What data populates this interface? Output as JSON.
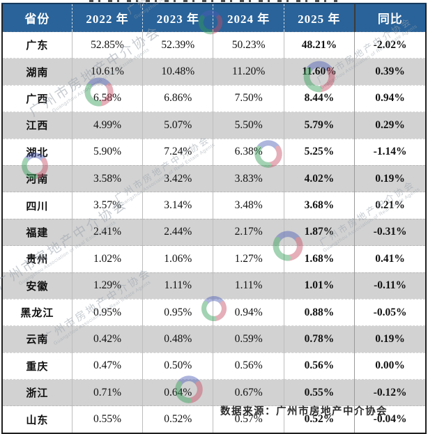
{
  "chart_data": {
    "type": "table",
    "columns": [
      "省份",
      "2022 年",
      "2023 年",
      "2024 年",
      "2025 年",
      "同比"
    ],
    "rows": [
      {
        "province": "广东",
        "y2022": "52.85%",
        "y2023": "52.39%",
        "y2024": "50.23%",
        "y2025": "48.21%",
        "yoy": "-2.02%"
      },
      {
        "province": "湖南",
        "y2022": "10.61%",
        "y2023": "10.48%",
        "y2024": "11.20%",
        "y2025": "11.60%",
        "yoy": "0.39%"
      },
      {
        "province": "广西",
        "y2022": "6.58%",
        "y2023": "6.86%",
        "y2024": "7.50%",
        "y2025": "8.44%",
        "yoy": "0.94%"
      },
      {
        "province": "江西",
        "y2022": "4.99%",
        "y2023": "5.07%",
        "y2024": "5.50%",
        "y2025": "5.79%",
        "yoy": "0.29%"
      },
      {
        "province": "湖北",
        "y2022": "5.90%",
        "y2023": "7.24%",
        "y2024": "6.38%",
        "y2025": "5.25%",
        "yoy": "-1.14%"
      },
      {
        "province": "河南",
        "y2022": "3.58%",
        "y2023": "3.42%",
        "y2024": "3.83%",
        "y2025": "4.02%",
        "yoy": "0.19%"
      },
      {
        "province": "四川",
        "y2022": "3.57%",
        "y2023": "3.14%",
        "y2024": "3.48%",
        "y2025": "3.68%",
        "yoy": "0.21%"
      },
      {
        "province": "福建",
        "y2022": "2.41%",
        "y2023": "2.44%",
        "y2024": "2.17%",
        "y2025": "1.87%",
        "yoy": "-0.31%"
      },
      {
        "province": "贵州",
        "y2022": "1.02%",
        "y2023": "1.06%",
        "y2024": "1.27%",
        "y2025": "1.68%",
        "yoy": "0.41%"
      },
      {
        "province": "安徽",
        "y2022": "1.29%",
        "y2023": "1.11%",
        "y2024": "1.11%",
        "y2025": "1.01%",
        "yoy": "-0.11%"
      },
      {
        "province": "黑龙江",
        "y2022": "0.95%",
        "y2023": "0.95%",
        "y2024": "0.94%",
        "y2025": "0.88%",
        "yoy": "-0.05%"
      },
      {
        "province": "云南",
        "y2022": "0.42%",
        "y2023": "0.48%",
        "y2024": "0.59%",
        "y2025": "0.78%",
        "yoy": "0.19%"
      },
      {
        "province": "重庆",
        "y2022": "0.47%",
        "y2023": "0.50%",
        "y2024": "0.56%",
        "y2025": "0.56%",
        "yoy": "0.00%"
      },
      {
        "province": "浙江",
        "y2022": "0.71%",
        "y2023": "0.64%",
        "y2024": "0.67%",
        "y2025": "0.55%",
        "yoy": "-0.12%"
      },
      {
        "province": "山东",
        "y2022": "0.55%",
        "y2023": "0.52%",
        "y2024": "0.57%",
        "y2025": "0.52%",
        "yoy": "-0.04%"
      }
    ]
  },
  "footer": {
    "source_note": "数据来源：广州市房地产中介协会"
  },
  "watermark": {
    "org_cn": "广州市房地产中介协会",
    "org_en": "Guangzhou Association of Real Estate Agents"
  },
  "colors": {
    "header_bg": "#2a6399",
    "header_text": "#ffffff",
    "row_stripe": "#d2d2d2",
    "border_dark": "#1f1f1f",
    "logo_blue": "#4a5db5",
    "logo_red": "#c54b60",
    "logo_green": "#2f9e55"
  }
}
